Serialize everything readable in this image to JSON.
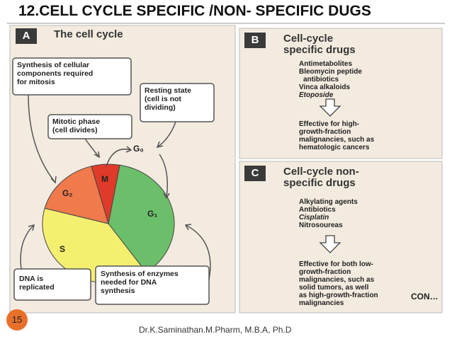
{
  "header": {
    "title": "12.CELL CYCLE SPECIFIC /NON- SPECIFIC DUGS"
  },
  "panel_a": {
    "label": "A",
    "title": "The cell cycle",
    "callouts": [
      {
        "lines": [
          "Synthesis of cellular",
          "components required",
          "for mitosis"
        ]
      },
      {
        "lines": [
          "Resting state",
          "(cell is not",
          "dividing)"
        ]
      },
      {
        "lines": [
          "Mitotic phase",
          "(cell divides)"
        ]
      },
      {
        "lines": [
          "DNA is",
          "replicated"
        ]
      },
      {
        "lines": [
          "Synthesis of enzymes",
          "needed for DNA",
          "synthesis"
        ]
      }
    ],
    "phases": [
      "M",
      "G₂",
      "S",
      "G₁",
      "G₀"
    ]
  },
  "panel_b": {
    "label": "B",
    "title": [
      "Cell-cycle",
      "specific drugs"
    ],
    "drugs": [
      "Antimetabolites",
      "Bleomycin peptide",
      "antibiotics",
      "Vinca alkaloids",
      "Etoposide"
    ],
    "effect": [
      "Effective for high-",
      "growth-fraction",
      "malignancies, such as",
      "hematologic cancers"
    ]
  },
  "panel_c": {
    "label": "C",
    "title": [
      "Cell-cycle non-",
      "specific drugs"
    ],
    "drugs": [
      "Alkylating agents",
      "Antibiotics",
      "Cisplatin",
      "Nitrosoureas"
    ],
    "effect": [
      "Effective for both low-",
      "growth-fraction",
      "malignancies, such as",
      "solid tumors, as well",
      "as high-growth-fraction",
      "malignancies"
    ]
  },
  "continued": "CON…",
  "page_number": "15",
  "footer": "Dr.K.Saminathan.M.Pharm, M.B.A, Ph.D"
}
